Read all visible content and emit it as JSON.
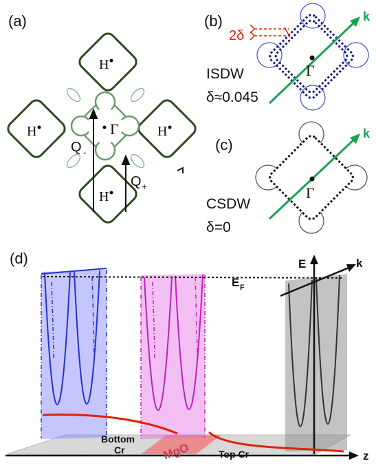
{
  "panel_a": {
    "label": "(a)",
    "H": "H",
    "Gamma": "Γ",
    "Qminus": "Q",
    "Qminus_sub": "-",
    "Qplus": "Q",
    "Qplus_sub": "+"
  },
  "panel_b": {
    "label": "(b)",
    "delta_label": "2δ",
    "k": "k",
    "Gamma": "Γ",
    "name": "ISDW",
    "value": "δ≈0.045"
  },
  "panel_c": {
    "label": "(c)",
    "k": "k",
    "Gamma": "Γ",
    "name": "CSDW",
    "value": "δ=0"
  },
  "panel_d": {
    "label": "(d)",
    "E": "E",
    "k": "k",
    "EF": "E",
    "EF_sub": "F",
    "bottom_cr_1": "Bottom",
    "bottom_cr_2": "Cr",
    "mgo": "MgO",
    "top_cr": "Top Cr",
    "z": "z"
  },
  "colors": {
    "dark_green": "#2e4a1f",
    "light_green": "#6b9b6b",
    "bright_green": "#1aa050",
    "blue": "#2233cc",
    "magenta": "#bb22bb",
    "red": "#dd2200",
    "black": "#111111"
  }
}
